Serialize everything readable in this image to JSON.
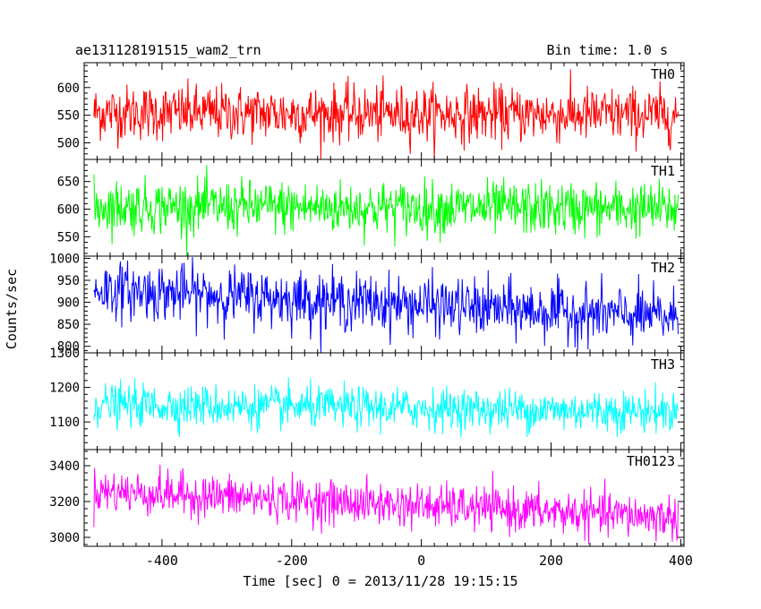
{
  "header": {
    "title": "ae131128191515_wam2_trn",
    "bin_time": "Bin time: 1.0 s"
  },
  "ylabel": "Counts/sec",
  "xlabel": "Time [sec] 0 = 2013/11/28 19:15:15",
  "chart_data": [
    {
      "type": "line",
      "name": "TH0",
      "color": "#ff0000",
      "xlim": [
        -520,
        405
      ],
      "ylim": [
        470,
        645
      ],
      "yticks": [
        500,
        550,
        600
      ],
      "data_x_range": [
        -505,
        396
      ],
      "mean_start": 555,
      "mean_end": 550,
      "noise_sd": 25,
      "y_min": 470,
      "y_max": 645
    },
    {
      "type": "line",
      "name": "TH1",
      "color": "#00ff00",
      "xlim": [
        -520,
        405
      ],
      "ylim": [
        515,
        690
      ],
      "yticks": [
        550,
        600,
        650
      ],
      "data_x_range": [
        -505,
        396
      ],
      "mean_start": 605,
      "mean_end": 600,
      "noise_sd": 24,
      "y_min": 515,
      "y_max": 690
    },
    {
      "type": "line",
      "name": "TH2",
      "color": "#0000ff",
      "xlim": [
        -520,
        405
      ],
      "ylim": [
        785,
        1005
      ],
      "yticks": [
        800,
        850,
        900,
        950,
        1000
      ],
      "data_x_range": [
        -505,
        396
      ],
      "mean_start": 930,
      "mean_end": 865,
      "noise_sd": 32,
      "y_min": 785,
      "y_max": 1005
    },
    {
      "type": "line",
      "name": "TH3",
      "color": "#00ffff",
      "xlim": [
        -520,
        405
      ],
      "ylim": [
        1020,
        1300
      ],
      "yticks": [
        1100,
        1200,
        1300
      ],
      "data_x_range": [
        -505,
        396
      ],
      "mean_start": 1150,
      "mean_end": 1130,
      "noise_sd": 30,
      "y_min": 1055,
      "y_max": 1300
    },
    {
      "type": "line",
      "name": "TH0123",
      "color": "#ff00ff",
      "xlim": [
        -520,
        405
      ],
      "ylim": [
        2950,
        3490
      ],
      "yticks": [
        3000,
        3200,
        3400
      ],
      "data_x_range": [
        -505,
        396
      ],
      "mean_start": 3260,
      "mean_end": 3110,
      "noise_sd": 60,
      "y_min": 2960,
      "y_max": 3480
    }
  ],
  "xticks": [
    -400,
    -200,
    0,
    200,
    400
  ]
}
